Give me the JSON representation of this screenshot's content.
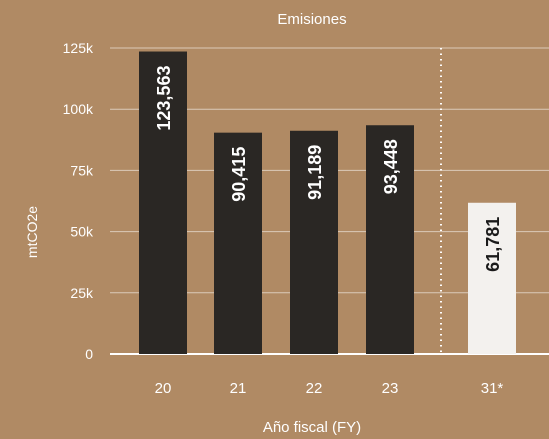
{
  "chart_data": {
    "type": "bar",
    "title": "Emisiones",
    "xlabel": "Año fiscal (FY)",
    "ylabel": "mtCO2e",
    "categories": [
      "20",
      "21",
      "22",
      "23",
      "31*"
    ],
    "values": [
      123563,
      90415,
      91189,
      93448,
      61781
    ],
    "value_labels": [
      "123,563",
      "90,415",
      "91,189",
      "93,448",
      "61,781"
    ],
    "ylim": [
      0,
      125000
    ],
    "yticks": [
      0,
      25000,
      50000,
      75000,
      100000,
      125000
    ],
    "ytick_labels": [
      "0",
      "25k",
      "50k",
      "75k",
      "100k",
      "125k"
    ],
    "grid": true,
    "separator_before_index": 4,
    "colors": {
      "background": "#b08a64",
      "bar_actual": "#2a2724",
      "bar_target": "#f3f1ee",
      "label_on_dark": "#ffffff",
      "label_on_light": "#1a1a1a",
      "axis_text": "#ffffff",
      "gridline": "#ffffff"
    }
  }
}
